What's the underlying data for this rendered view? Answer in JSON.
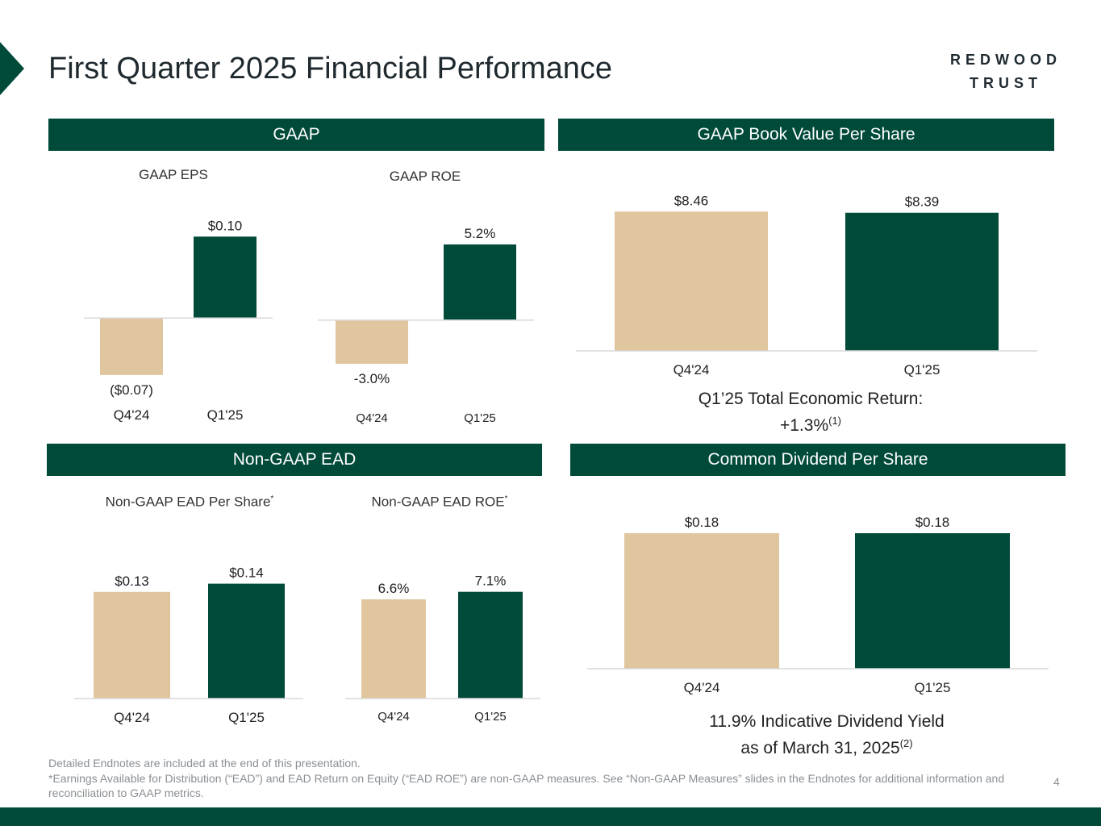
{
  "title": "First Quarter 2025 Financial Performance",
  "logo": {
    "line1": "REDWOOD",
    "line2": "TRUST"
  },
  "colors": {
    "brand": "#004A3A",
    "tan": "#E0C69E",
    "axis": "#d9d9d9"
  },
  "sections": {
    "gaap": "GAAP",
    "book_value": "GAAP Book Value Per Share",
    "ead": "Non-GAAP EAD",
    "dividend": "Common Dividend Per Share"
  },
  "chart_titles": {
    "eps": "GAAP EPS",
    "roe": "GAAP ROE",
    "ead_per_share": "Non-GAAP EAD Per Share",
    "ead_roe": "Non-GAAP EAD ROE",
    "asterisk": "*"
  },
  "notes": {
    "total_return_line1": "Q1’25 Total Economic Return:",
    "total_return_line2": "+1.3%",
    "total_return_ref": "(1)",
    "dividend_yield_line1": "11.9% Indicative Dividend Yield",
    "dividend_yield_line2": "as of March 31, 2025",
    "dividend_yield_ref": "(2)"
  },
  "endnotes": [
    "Detailed Endnotes are included at the end of this presentation.",
    "*Earnings Available for Distribution (“EAD”) and EAD Return on Equity (“EAD ROE”) are non-GAAP measures. See “Non-GAAP Measures” slides in the Endnotes for additional information and reconciliation to GAAP metrics."
  ],
  "page_number": "4",
  "chart_data": [
    {
      "id": "eps",
      "type": "bar",
      "title": "GAAP EPS",
      "categories": [
        "Q4'24",
        "Q1'25"
      ],
      "values": [
        -0.07,
        0.1
      ],
      "labels": [
        "($0.07)",
        "$0.10"
      ],
      "ylim": [
        -0.083,
        0.135
      ]
    },
    {
      "id": "roe",
      "type": "bar",
      "title": "GAAP ROE",
      "categories": [
        "Q4'24",
        "Q1'25"
      ],
      "values": [
        -3.0,
        5.2
      ],
      "labels": [
        "-3.0%",
        "5.2%"
      ],
      "ylim": [
        -4.5,
        7.7
      ]
    },
    {
      "id": "bv",
      "type": "bar",
      "title": "GAAP Book Value Per Share",
      "categories": [
        "Q4'24",
        "Q1'25"
      ],
      "values": [
        8.46,
        8.39
      ],
      "labels": [
        "$8.46",
        "$8.39"
      ],
      "ylim": [
        0,
        9.7
      ]
    },
    {
      "id": "ead",
      "type": "bar",
      "title": "Non-GAAP EAD Per Share",
      "categories": [
        "Q4'24",
        "Q1'25"
      ],
      "values": [
        0.13,
        0.14
      ],
      "labels": [
        "$0.13",
        "$0.14"
      ],
      "ylim": [
        0,
        0.175
      ]
    },
    {
      "id": "eadroe",
      "type": "bar",
      "title": "Non-GAAP EAD ROE",
      "categories": [
        "Q4'24",
        "Q1'25"
      ],
      "values": [
        6.6,
        7.1
      ],
      "labels": [
        "6.6%",
        "7.1%"
      ],
      "ylim": [
        0,
        8.8
      ]
    },
    {
      "id": "div",
      "type": "bar",
      "title": "Common Dividend Per Share",
      "categories": [
        "Q4'24",
        "Q1'25"
      ],
      "values": [
        0.18,
        0.18
      ],
      "labels": [
        "$0.18",
        "$0.18"
      ],
      "ylim": [
        0,
        0.225
      ]
    }
  ]
}
